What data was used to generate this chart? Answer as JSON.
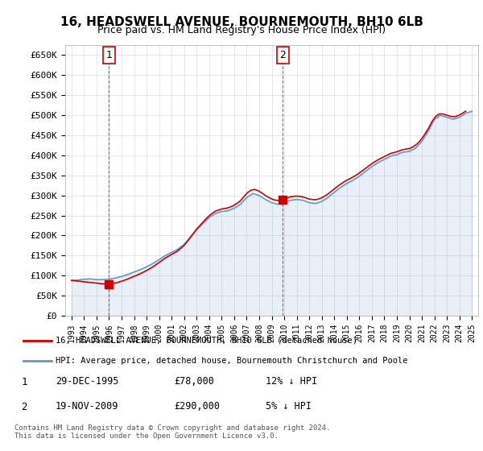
{
  "title": "16, HEADSWELL AVENUE, BOURNEMOUTH, BH10 6LB",
  "subtitle": "Price paid vs. HM Land Registry's House Price Index (HPI)",
  "ylabel_ticks": [
    "£0",
    "£50K",
    "£100K",
    "£150K",
    "£200K",
    "£250K",
    "£300K",
    "£350K",
    "£400K",
    "£450K",
    "£500K",
    "£550K",
    "£600K",
    "£650K"
  ],
  "ylim": [
    0,
    675000
  ],
  "ytick_vals": [
    0,
    50000,
    100000,
    150000,
    200000,
    250000,
    300000,
    350000,
    400000,
    450000,
    500000,
    550000,
    600000,
    650000
  ],
  "xmin_year": 1993,
  "xmax_year": 2025,
  "xtick_years": [
    1993,
    1994,
    1995,
    1996,
    1997,
    1998,
    1999,
    2000,
    2001,
    2002,
    2003,
    2004,
    2005,
    2006,
    2007,
    2008,
    2009,
    2010,
    2011,
    2012,
    2013,
    2014,
    2015,
    2016,
    2017,
    2018,
    2019,
    2020,
    2021,
    2022,
    2023,
    2024,
    2025
  ],
  "hpi_line_color": "#6699cc",
  "price_line_color": "#cc0000",
  "marker_color": "#cc0000",
  "sale1": {
    "year": 1995.99,
    "price": 78000,
    "label": "1"
  },
  "sale2": {
    "year": 2009.9,
    "price": 290000,
    "label": "2"
  },
  "legend_line1": "16, HEADSWELL AVENUE, BOURNEMOUTH, BH10 6LB (detached house)",
  "legend_line2": "HPI: Average price, detached house, Bournemouth Christchurch and Poole",
  "table_row1": [
    "1",
    "29-DEC-1995",
    "£78,000",
    "12% ↓ HPI"
  ],
  "table_row2": [
    "2",
    "19-NOV-2009",
    "£290,000",
    "5% ↓ HPI"
  ],
  "footer": "Contains HM Land Registry data © Crown copyright and database right 2024.\nThis data is licensed under the Open Government Licence v3.0.",
  "background_color": "#ffffff",
  "grid_color": "#dddddd",
  "hpi_data_x": [
    1993,
    1993.5,
    1994,
    1994.5,
    1995,
    1995.5,
    1996,
    1996.5,
    1997,
    1997.5,
    1998,
    1998.5,
    1999,
    1999.5,
    2000,
    2000.5,
    2001,
    2001.5,
    2002,
    2002.5,
    2003,
    2003.5,
    2004,
    2004.5,
    2005,
    2005.5,
    2006,
    2006.5,
    2007,
    2007.5,
    2008,
    2008.5,
    2009,
    2009.5,
    2010,
    2010.5,
    2011,
    2011.5,
    2012,
    2012.5,
    2013,
    2013.5,
    2014,
    2014.5,
    2015,
    2015.5,
    2016,
    2016.5,
    2017,
    2017.5,
    2018,
    2018.5,
    2019,
    2019.5,
    2020,
    2020.5,
    2021,
    2021.5,
    2022,
    2022.5,
    2023,
    2023.5,
    2024,
    2024.5,
    2025
  ],
  "hpi_data_y": [
    88000,
    89000,
    91000,
    92000,
    90000,
    90000,
    91000,
    94000,
    98000,
    103000,
    109000,
    115000,
    122000,
    130000,
    140000,
    150000,
    158000,
    166000,
    178000,
    196000,
    215000,
    230000,
    245000,
    255000,
    260000,
    262000,
    268000,
    278000,
    295000,
    305000,
    300000,
    290000,
    282000,
    278000,
    282000,
    288000,
    290000,
    288000,
    282000,
    280000,
    285000,
    295000,
    308000,
    320000,
    330000,
    338000,
    348000,
    360000,
    372000,
    382000,
    390000,
    398000,
    402000,
    408000,
    410000,
    418000,
    435000,
    460000,
    490000,
    500000,
    495000,
    490000,
    495000,
    505000,
    510000
  ],
  "price_data_x": [
    1993,
    1995.99,
    2009.9,
    2024.5
  ],
  "price_data_y": [
    88000,
    78000,
    290000,
    510000
  ]
}
